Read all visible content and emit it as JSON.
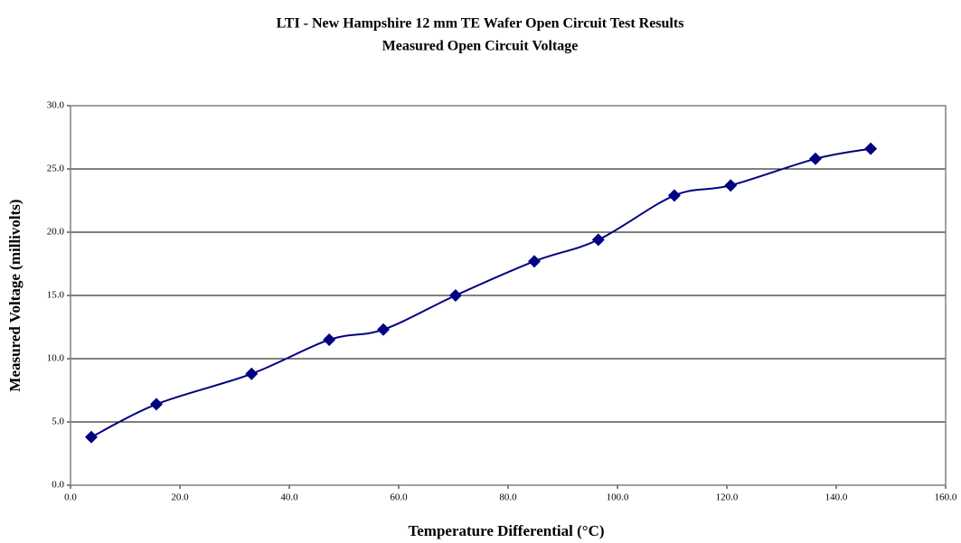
{
  "chart_data": {
    "type": "scatter",
    "title": "LTI - New Hampshire 12 mm TE Wafer Open Circuit Test Results",
    "subtitle": "Measured Open Circuit Voltage",
    "x_label": "Temperature Differential (°C)",
    "y_label": "Measured Voltage (millivolts)",
    "series": [
      {
        "name": "Measured Voltage",
        "color": "#000080",
        "x": [
          3.8,
          15.7,
          33.1,
          47.3,
          57.2,
          70.4,
          84.8,
          96.5,
          110.4,
          120.7,
          136.2,
          146.3
        ],
        "values": [
          3.8,
          6.4,
          8.8,
          11.5,
          12.3,
          15.0,
          17.7,
          19.4,
          22.9,
          23.7,
          25.8,
          26.6
        ]
      }
    ],
    "xlim": [
      0,
      160
    ],
    "xticks": [
      {
        "value": 0,
        "label": "0.0"
      },
      {
        "value": 20,
        "label": "20.0"
      },
      {
        "value": 40,
        "label": "40.0"
      },
      {
        "value": 60,
        "label": "60.0"
      },
      {
        "value": 80,
        "label": "80.0"
      },
      {
        "value": 100,
        "label": "100.0"
      },
      {
        "value": 120,
        "label": "120.0"
      },
      {
        "value": 140,
        "label": "140.0"
      },
      {
        "value": 160,
        "label": "160.0"
      }
    ],
    "ylim": [
      0,
      30
    ],
    "yticks": [
      {
        "value": 0,
        "label": "0.0"
      },
      {
        "value": 5,
        "label": "5.0"
      },
      {
        "value": 10,
        "label": "10.0"
      },
      {
        "value": 15,
        "label": "15.0"
      },
      {
        "value": 20,
        "label": "20.0"
      },
      {
        "value": 25,
        "label": "25.0"
      },
      {
        "value": 30,
        "label": "30.0"
      }
    ],
    "grid": true,
    "smooth": true
  }
}
